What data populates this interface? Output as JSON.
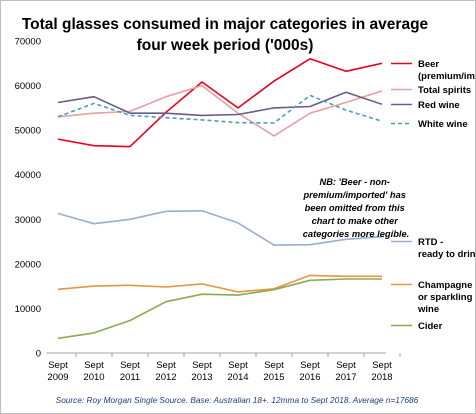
{
  "chart_data": {
    "type": "line",
    "title": [
      "Total glasses consumed in major categories in average",
      "four week period ('000s)"
    ],
    "x": [
      [
        "Sept",
        "2009"
      ],
      [
        "Sept",
        "2010"
      ],
      [
        "Sept",
        "2011"
      ],
      [
        "Sept",
        "2012"
      ],
      [
        "Sept",
        "2013"
      ],
      [
        "Sept",
        "2014"
      ],
      [
        "Sept",
        "2015"
      ],
      [
        "Sept",
        "2016"
      ],
      [
        "Sept",
        "2017"
      ],
      [
        "Sept",
        "2018"
      ]
    ],
    "ylim": [
      0,
      70000
    ],
    "yticks": [
      0,
      10000,
      20000,
      30000,
      40000,
      50000,
      60000,
      70000
    ],
    "ytick_labels": [
      "0",
      "10000",
      "20000",
      "30000",
      "40000",
      "50000",
      "60000",
      "70000"
    ],
    "grid": false,
    "legend_placement": "right",
    "series": [
      {
        "name": [
          "Beer",
          "(premium/import)"
        ],
        "color": "#e8001c",
        "dashed": false,
        "values": [
          48000,
          46500,
          46300,
          54000,
          60800,
          55000,
          61000,
          66000,
          63200,
          65000
        ]
      },
      {
        "name": [
          "Total spirits"
        ],
        "color": "#e8a0a4",
        "dashed": false,
        "values": [
          53000,
          53800,
          54200,
          57500,
          60000,
          53800,
          48700,
          53800,
          56200,
          58800
        ]
      },
      {
        "name": [
          "Red wine"
        ],
        "color": "#6a5a8a",
        "dashed": false,
        "values": [
          56200,
          57500,
          53800,
          53800,
          53300,
          53500,
          55000,
          55300,
          58500,
          55800
        ]
      },
      {
        "name": [
          "White wine"
        ],
        "color": "#4a9ac2",
        "dashed": true,
        "values": [
          53000,
          56000,
          53300,
          52800,
          52300,
          51700,
          51600,
          57800,
          54500,
          52000
        ]
      },
      {
        "name": [
          "RTD -",
          "ready to drink"
        ],
        "color": "#9aaecf",
        "dashed": false,
        "values": [
          31300,
          29000,
          30000,
          31800,
          31900,
          29200,
          24200,
          24300,
          25500,
          26100
        ]
      },
      {
        "name": [
          "Champagne",
          "or sparkling",
          "wine"
        ],
        "color": "#e8953c",
        "dashed": false,
        "values": [
          14300,
          15000,
          15200,
          14800,
          15500,
          13700,
          14400,
          17400,
          17200,
          17200
        ]
      },
      {
        "name": [
          "Cider"
        ],
        "color": "#8aab50",
        "dashed": false,
        "values": [
          3300,
          4500,
          7300,
          11500,
          13200,
          13000,
          14200,
          16300,
          16600,
          16600
        ]
      }
    ],
    "annotation": [
      "NB: 'Beer - non-",
      "premium/imported' has",
      "been omitted from this",
      "chart to make other",
      "categories more legible."
    ],
    "source": "Source: Roy Morgan Single Source. Base: Australian 18+. 12mma to Sept 2018. Average n=17686"
  }
}
